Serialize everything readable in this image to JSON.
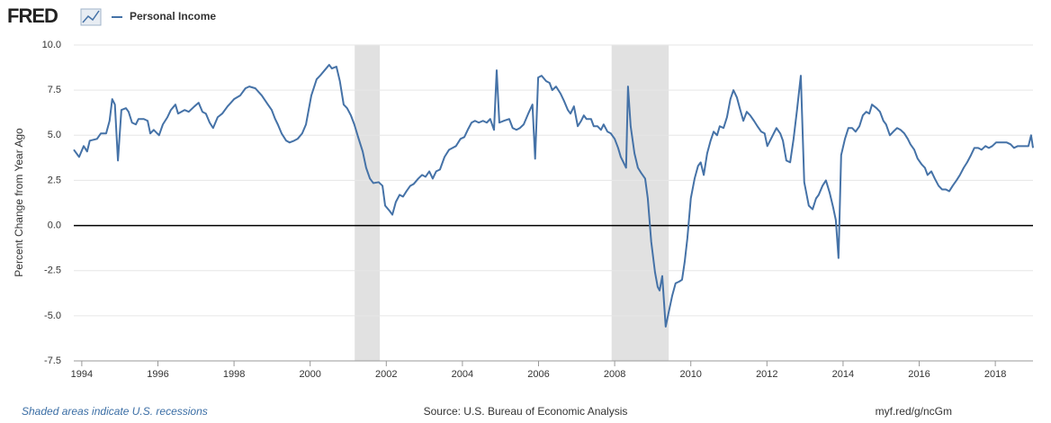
{
  "chart_data": {
    "type": "line",
    "logo": "FRED",
    "ylabel": "Percent Change from Year Ago",
    "notes": [
      "Shaded areas indicate U.S. recessions",
      "Source: U.S. Bureau of Economic Analysis",
      "myf.red/g/ncGm"
    ],
    "xlim": [
      1993.79,
      2018.99
    ],
    "xticks": [
      1994,
      1996,
      1998,
      2000,
      2002,
      2004,
      2006,
      2008,
      2010,
      2012,
      2014,
      2016,
      2018
    ],
    "ylim": [
      -7.5,
      10
    ],
    "yticks": [
      {
        "value": -7.5,
        "label": "-7.5"
      },
      {
        "value": -5,
        "label": "-5.0"
      },
      -2.5,
      {
        "value": 0,
        "label": "0.0"
      },
      2.5,
      {
        "value": 5,
        "label": "5.0"
      },
      7.5,
      {
        "value": 10,
        "label": "10.0"
      }
    ],
    "grid": true,
    "hline": 0,
    "recessions": [
      [
        2001.17,
        2001.83
      ],
      [
        2007.92,
        2009.42
      ]
    ],
    "x": [
      1993.79,
      1993.93,
      1994.05,
      1994.14,
      1994.21,
      1994.4,
      1994.5,
      1994.64,
      1994.73,
      1994.8,
      1994.87,
      1994.95,
      1995.04,
      1995.16,
      1995.23,
      1995.32,
      1995.42,
      1995.49,
      1995.63,
      1995.73,
      1995.8,
      1995.89,
      1996.03,
      1996.13,
      1996.25,
      1996.34,
      1996.46,
      1996.53,
      1996.7,
      1996.81,
      1996.96,
      1997.07,
      1997.17,
      1997.26,
      1997.36,
      1997.45,
      1997.57,
      1997.69,
      1997.83,
      1998.0,
      1998.16,
      1998.3,
      1998.4,
      1998.56,
      1998.73,
      1998.89,
      1998.99,
      1999.08,
      1999.15,
      1999.25,
      1999.37,
      1999.46,
      1999.58,
      1999.67,
      1999.79,
      1999.89,
      2000.03,
      2000.17,
      2000.26,
      2000.38,
      2000.5,
      2000.57,
      2000.69,
      2000.78,
      2000.88,
      2000.97,
      2001.07,
      2001.16,
      2001.26,
      2001.38,
      2001.47,
      2001.57,
      2001.66,
      2001.8,
      2001.9,
      2001.97,
      2002.09,
      2002.16,
      2002.25,
      2002.35,
      2002.44,
      2002.53,
      2002.63,
      2002.72,
      2002.84,
      2002.94,
      2003.03,
      2003.13,
      2003.22,
      2003.31,
      2003.41,
      2003.53,
      2003.65,
      2003.74,
      2003.83,
      2003.95,
      2004.05,
      2004.14,
      2004.24,
      2004.33,
      2004.43,
      2004.54,
      2004.64,
      2004.73,
      2004.83,
      2004.9,
      2004.97,
      2005.09,
      2005.23,
      2005.32,
      2005.42,
      2005.51,
      2005.61,
      2005.73,
      2005.84,
      2005.91,
      2005.99,
      2006.08,
      2006.2,
      2006.29,
      2006.36,
      2006.46,
      2006.58,
      2006.67,
      2006.77,
      2006.84,
      2006.93,
      2007.03,
      2007.12,
      2007.19,
      2007.26,
      2007.38,
      2007.45,
      2007.55,
      2007.64,
      2007.71,
      2007.81,
      2007.9,
      2008.0,
      2008.09,
      2008.16,
      2008.3,
      2008.35,
      2008.42,
      2008.52,
      2008.61,
      2008.7,
      2008.8,
      2008.87,
      2008.96,
      2009.06,
      2009.13,
      2009.18,
      2009.25,
      2009.34,
      2009.41,
      2009.51,
      2009.6,
      2009.7,
      2009.77,
      2009.84,
      2009.91,
      2010.0,
      2010.1,
      2010.19,
      2010.26,
      2010.34,
      2010.43,
      2010.52,
      2010.6,
      2010.69,
      2010.76,
      2010.86,
      2010.95,
      2011.04,
      2011.12,
      2011.21,
      2011.3,
      2011.38,
      2011.47,
      2011.56,
      2011.66,
      2011.75,
      2011.85,
      2011.94,
      2012.01,
      2012.13,
      2012.25,
      2012.35,
      2012.42,
      2012.51,
      2012.61,
      2012.7,
      2012.79,
      2012.89,
      2012.98,
      2013.1,
      2013.2,
      2013.29,
      2013.36,
      2013.46,
      2013.55,
      2013.65,
      2013.74,
      2013.81,
      2013.88,
      2013.95,
      2014.05,
      2014.14,
      2014.24,
      2014.33,
      2014.43,
      2014.52,
      2014.61,
      2014.69,
      2014.76,
      2014.88,
      2014.97,
      2015.06,
      2015.13,
      2015.23,
      2015.32,
      2015.42,
      2015.51,
      2015.61,
      2015.7,
      2015.77,
      2015.87,
      2015.96,
      2016.06,
      2016.15,
      2016.22,
      2016.32,
      2016.41,
      2016.51,
      2016.6,
      2016.7,
      2016.79,
      2016.88,
      2016.98,
      2017.07,
      2017.17,
      2017.26,
      2017.36,
      2017.45,
      2017.55,
      2017.64,
      2017.74,
      2017.83,
      2017.92,
      2018.02,
      2018.11,
      2018.21,
      2018.3,
      2018.4,
      2018.49,
      2018.59,
      2018.68,
      2018.78,
      2018.87,
      2018.94,
      2018.99
    ],
    "series": [
      {
        "name": "Personal Income",
        "color": "#4572a7",
        "values": [
          4.2,
          3.8,
          4.4,
          4.1,
          4.7,
          4.8,
          5.1,
          5.1,
          5.8,
          7.0,
          6.7,
          3.6,
          6.4,
          6.5,
          6.3,
          5.7,
          5.6,
          5.9,
          5.9,
          5.8,
          5.1,
          5.3,
          5.0,
          5.6,
          6.0,
          6.4,
          6.7,
          6.2,
          6.4,
          6.3,
          6.6,
          6.8,
          6.3,
          6.2,
          5.7,
          5.4,
          6.0,
          6.2,
          6.6,
          7.0,
          7.2,
          7.6,
          7.7,
          7.6,
          7.2,
          6.7,
          6.4,
          5.9,
          5.6,
          5.1,
          4.7,
          4.6,
          4.7,
          4.8,
          5.1,
          5.6,
          7.2,
          8.1,
          8.3,
          8.6,
          8.9,
          8.7,
          8.8,
          8.0,
          6.7,
          6.5,
          6.1,
          5.6,
          4.9,
          4.1,
          3.2,
          2.6,
          2.35,
          2.4,
          2.2,
          1.1,
          0.8,
          0.6,
          1.3,
          1.7,
          1.6,
          1.9,
          2.2,
          2.3,
          2.6,
          2.8,
          2.7,
          3.0,
          2.6,
          3.0,
          3.1,
          3.8,
          4.2,
          4.3,
          4.4,
          4.8,
          4.9,
          5.3,
          5.7,
          5.8,
          5.7,
          5.8,
          5.7,
          5.9,
          5.3,
          8.6,
          5.7,
          5.8,
          5.9,
          5.4,
          5.3,
          5.4,
          5.6,
          6.2,
          6.7,
          3.7,
          8.2,
          8.3,
          8.0,
          7.9,
          7.5,
          7.7,
          7.3,
          6.9,
          6.4,
          6.2,
          6.6,
          5.5,
          5.8,
          6.1,
          5.9,
          5.9,
          5.5,
          5.5,
          5.3,
          5.6,
          5.2,
          5.1,
          4.8,
          4.3,
          3.8,
          3.2,
          7.7,
          5.5,
          4.0,
          3.2,
          2.9,
          2.6,
          1.5,
          -0.9,
          -2.6,
          -3.4,
          -3.6,
          -2.8,
          -5.6,
          -4.9,
          -3.9,
          -3.2,
          -3.1,
          -3.0,
          -2.0,
          -0.7,
          1.5,
          2.6,
          3.3,
          3.5,
          2.8,
          4.0,
          4.7,
          5.2,
          5.0,
          5.5,
          5.4,
          6.0,
          7.0,
          7.5,
          7.1,
          6.4,
          5.8,
          6.3,
          6.1,
          5.8,
          5.5,
          5.2,
          5.1,
          4.4,
          4.9,
          5.4,
          5.1,
          4.7,
          3.6,
          3.5,
          4.8,
          6.4,
          8.3,
          2.4,
          1.1,
          0.9,
          1.5,
          1.7,
          2.2,
          2.5,
          1.8,
          1.0,
          0.3,
          -1.8,
          3.9,
          4.8,
          5.4,
          5.4,
          5.2,
          5.5,
          6.1,
          6.3,
          6.2,
          6.7,
          6.5,
          6.3,
          5.8,
          5.6,
          5.0,
          5.2,
          5.4,
          5.3,
          5.1,
          4.8,
          4.5,
          4.2,
          3.7,
          3.4,
          3.2,
          2.8,
          3.0,
          2.6,
          2.2,
          2.0,
          2.0,
          1.9,
          2.2,
          2.5,
          2.8,
          3.2,
          3.5,
          3.9,
          4.3,
          4.3,
          4.2,
          4.4,
          4.3,
          4.4,
          4.6,
          4.6,
          4.6,
          4.6,
          4.5,
          4.3,
          4.4,
          4.4,
          4.4,
          4.4,
          5.0,
          4.3
        ]
      }
    ]
  }
}
